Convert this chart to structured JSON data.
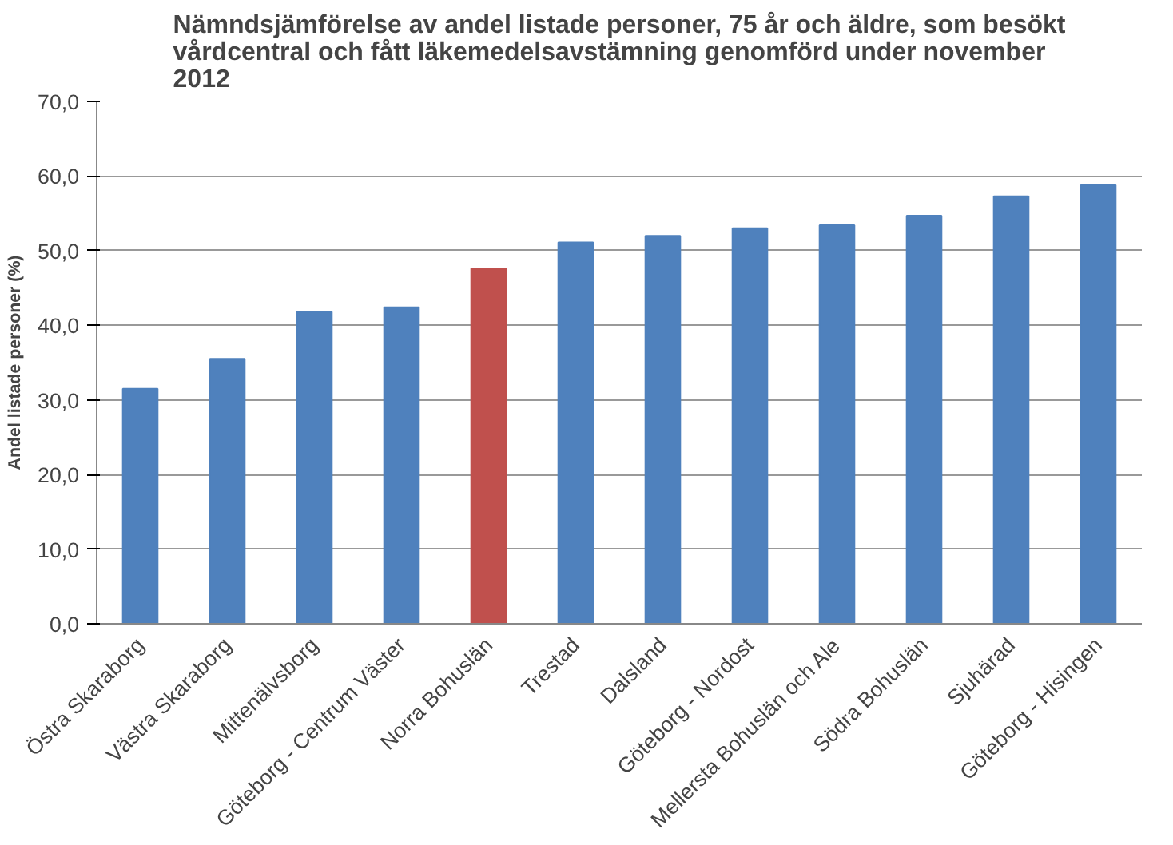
{
  "chart_data": {
    "type": "bar",
    "title": "Nämndsjämförelse av andel listade personer, 75 år och äldre, som besökt\nvårdcentral och fått läkemedelsavstämning genomförd under november\n2012",
    "ylabel": "Andel listade personer (%)",
    "categories": [
      "Östra Skaraborg",
      "Västra Skaraborg",
      "Mittenälvsborg",
      "Göteborg - Centrum Väster",
      "Norra Bohuslän",
      "Trestad",
      "Dalsland",
      "Göteborg - Nordost",
      "Mellersta Bohuslän och Ale",
      "Södra Bohuslän",
      "Sjuhärad",
      "Göteborg - Hisingen"
    ],
    "values": [
      31.5,
      35.5,
      41.8,
      42.4,
      47.6,
      51.1,
      52.0,
      53.0,
      53.4,
      54.7,
      57.3,
      58.8
    ],
    "colors": [
      "#4f81bd",
      "#4f81bd",
      "#4f81bd",
      "#4f81bd",
      "#c0504d",
      "#4f81bd",
      "#4f81bd",
      "#4f81bd",
      "#4f81bd",
      "#4f81bd",
      "#4f81bd",
      "#4f81bd"
    ],
    "ylim": [
      0,
      70
    ],
    "yticks": [
      {
        "value": 0,
        "label": "0,0"
      },
      {
        "value": 10,
        "label": "10,0"
      },
      {
        "value": 20,
        "label": "20,0"
      },
      {
        "value": 30,
        "label": "30,0"
      },
      {
        "value": 40,
        "label": "40,0"
      },
      {
        "value": 50,
        "label": "50,0"
      },
      {
        "value": 60,
        "label": "60,0"
      },
      {
        "value": 70,
        "label": "70,0"
      }
    ],
    "grid": "y"
  }
}
